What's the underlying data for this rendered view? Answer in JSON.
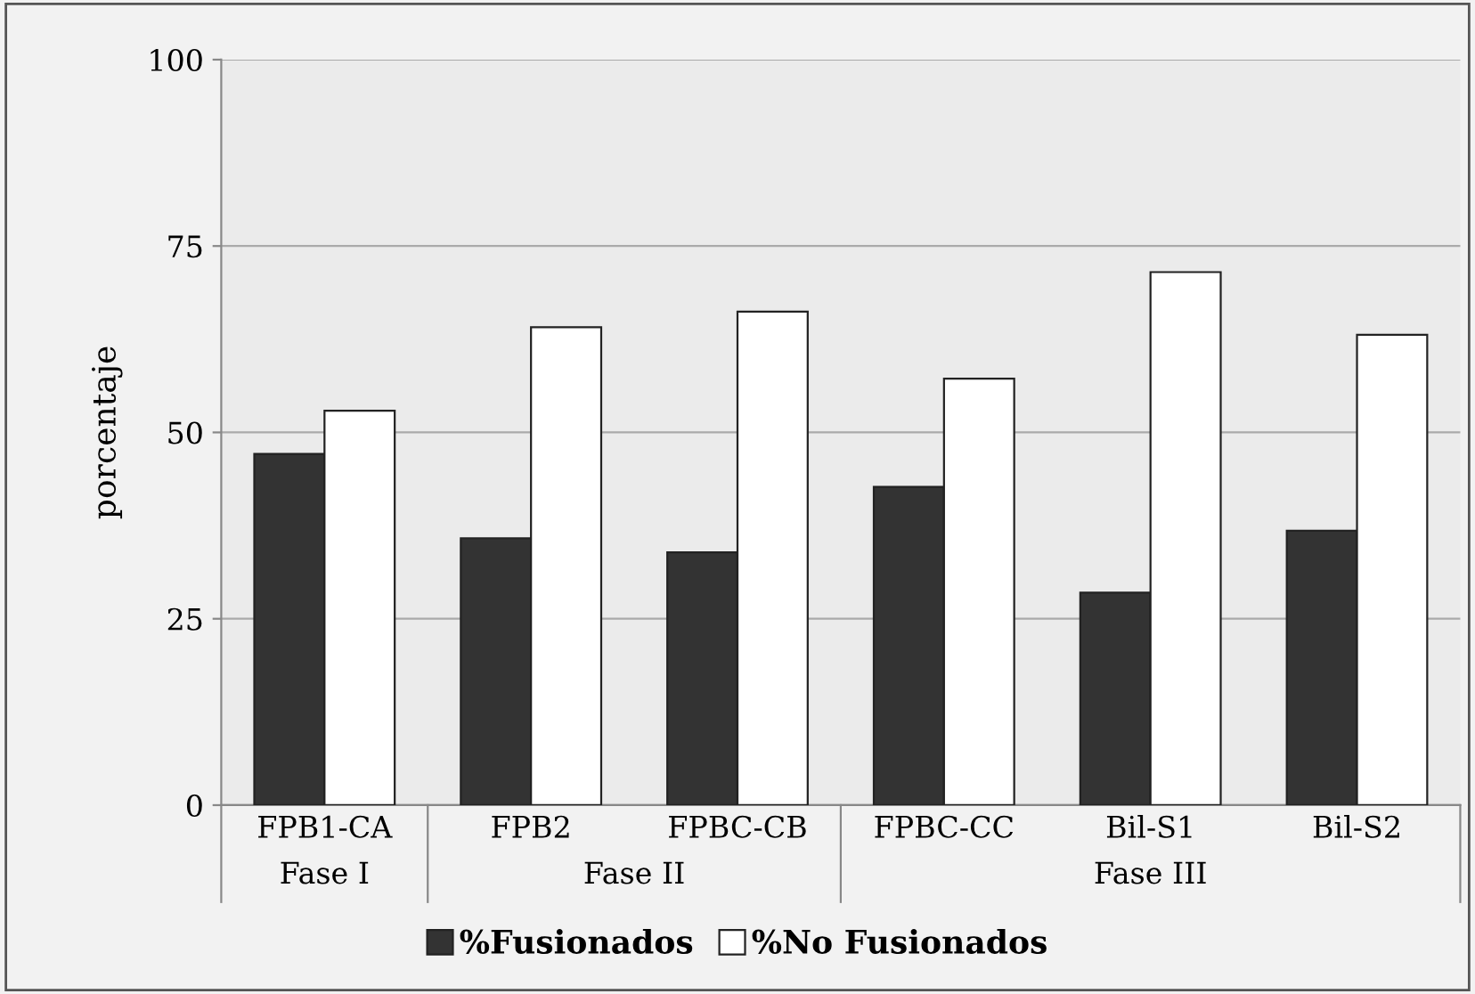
{
  "chart_data": {
    "type": "bar",
    "ylabel": "porcentaje",
    "categories": [
      "FPB1-CA",
      "FPB2",
      "FPBC-CB",
      "FPBC-CC",
      "Bil-S1",
      "Bil-S2"
    ],
    "series": [
      {
        "name": "%Fusionados",
        "color": "#333333",
        "values": [
          47.1,
          35.8,
          33.9,
          42.7,
          28.5,
          36.8
        ]
      },
      {
        "name": "%No Fusionados",
        "color": "#ffffff",
        "values": [
          52.9,
          64.1,
          66.2,
          57.2,
          71.5,
          63.1
        ]
      }
    ],
    "annotations": [
      "Fase I",
      "Fase II",
      "Fase III"
    ],
    "ylim": [
      0,
      100
    ],
    "yticks": [
      0,
      25,
      50,
      75,
      100
    ],
    "grid": "y",
    "legend": "bottom"
  }
}
